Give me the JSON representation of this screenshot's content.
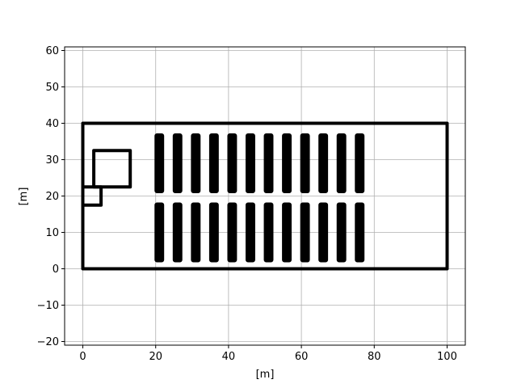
{
  "chart_data": {
    "type": "line",
    "title": "",
    "xlabel": "[m]",
    "ylabel": "[m]",
    "xlim": [
      -5,
      105
    ],
    "ylim": [
      -21,
      61
    ],
    "xticks": [
      0,
      20,
      40,
      60,
      80,
      100
    ],
    "yticks": [
      -20,
      -10,
      0,
      10,
      20,
      30,
      40,
      50,
      60
    ],
    "grid": true,
    "colors": {
      "line": "#000000",
      "grid": "#b0b0b0",
      "axes": "#000000"
    },
    "series": [
      {
        "points": [
          [
            0,
            0
          ],
          [
            100,
            0
          ],
          [
            100,
            40
          ],
          [
            0,
            40
          ],
          [
            0,
            0
          ]
        ]
      },
      {
        "points": [
          [
            3,
            22.5
          ],
          [
            13,
            22.5
          ],
          [
            13,
            32.5
          ],
          [
            3,
            32.5
          ],
          [
            3,
            22.5
          ]
        ]
      },
      {
        "points": [
          [
            0,
            17.5
          ],
          [
            5,
            17.5
          ],
          [
            5,
            22.5
          ],
          [
            0,
            22.5
          ],
          [
            0,
            17.5
          ]
        ]
      }
    ],
    "obstacle_blocks": {
      "x_centers": [
        21,
        26,
        31,
        36,
        41,
        46,
        51,
        56,
        61,
        66,
        71,
        76
      ],
      "width": 2.2,
      "rows": [
        {
          "y_min": 2,
          "y_max": 18
        },
        {
          "y_min": 21,
          "y_max": 37
        }
      ]
    }
  }
}
